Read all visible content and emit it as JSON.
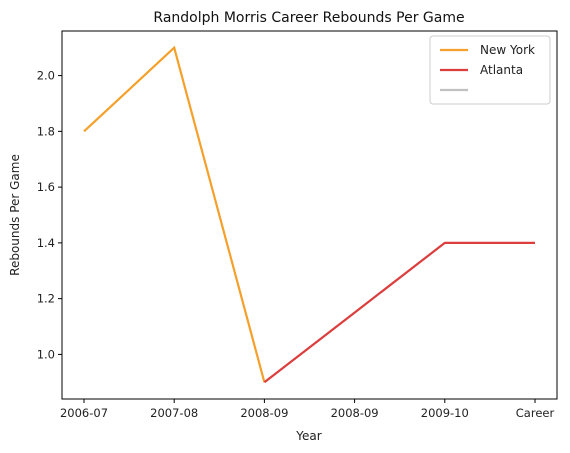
{
  "chart_data": {
    "type": "line",
    "title": "Randolph Morris Career Rebounds Per Game",
    "xlabel": "Year",
    "ylabel": "Rebounds Per Game",
    "categories": [
      "2006-07",
      "2007-08",
      "2008-09",
      "2008-09",
      "2009-10",
      "Career"
    ],
    "ylim": [
      0.84,
      2.16
    ],
    "yticks": [
      1.0,
      1.2,
      1.4,
      1.6,
      1.8,
      2.0
    ],
    "ytick_labels": [
      "1.0",
      "1.2",
      "1.4",
      "1.6",
      "1.8",
      "2.0"
    ],
    "grid": false,
    "legend_position": "top-right",
    "series": [
      {
        "name": "New York",
        "color": "#f5a02a",
        "x": [
          0,
          1,
          2
        ],
        "values": [
          1.8,
          2.1,
          0.9
        ]
      },
      {
        "name": "Atlanta",
        "color": "#dc3d3d",
        "x": [
          2,
          3,
          4,
          5
        ],
        "values": [
          0.9,
          1.15,
          1.4,
          1.4
        ]
      },
      {
        "name": "",
        "color": "#c0c0c0",
        "x": [],
        "values": []
      }
    ]
  }
}
